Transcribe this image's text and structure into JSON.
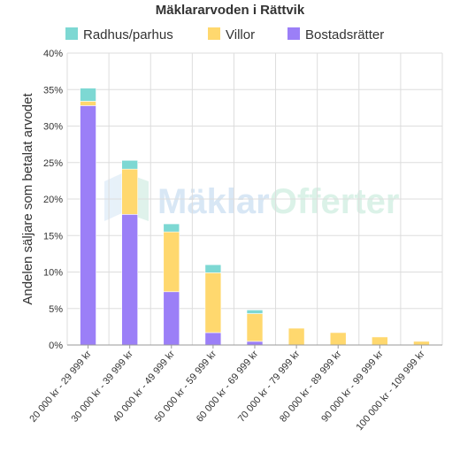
{
  "chart_data": {
    "type": "bar",
    "stacked": true,
    "title": "Mäklararvoden i Rättvik",
    "ylabel": "Andelen säljare som betalat arvodet",
    "xlabel": "",
    "ylim": [
      0,
      40
    ],
    "yticks": [
      "0%",
      "5%",
      "10%",
      "15%",
      "20%",
      "25%",
      "30%",
      "35%",
      "40%"
    ],
    "grid": true,
    "legend_position": "top",
    "categories": [
      "20 000 kr - 29 999 kr",
      "30 000 kr - 39 999 kr",
      "40 000 kr - 49 999 kr",
      "50 000 kr - 59 999 kr",
      "60 000 kr - 69 999 kr",
      "70 000 kr - 79 999 kr",
      "80 000 kr - 89 999 kr",
      "90 000 kr - 99 999 kr",
      "100 000 kr - 109 999 kr"
    ],
    "series": [
      {
        "name": "Bostadsrätter",
        "color": "#9b7ff7",
        "values": [
          32.8,
          17.9,
          7.3,
          1.7,
          0.5,
          0,
          0,
          0,
          0
        ]
      },
      {
        "name": "Villor",
        "color": "#ffd86e",
        "values": [
          0.6,
          6.2,
          8.2,
          8.2,
          3.8,
          2.3,
          1.7,
          1.1,
          0.5
        ]
      },
      {
        "name": "Radhus/parhus",
        "color": "#7dd8d3",
        "values": [
          1.8,
          1.2,
          1.1,
          1.1,
          0.5,
          0,
          0,
          0,
          0
        ]
      }
    ],
    "legend_order": [
      "Radhus/parhus",
      "Villor",
      "Bostadsrätter"
    ]
  },
  "watermark": {
    "text_a": "Mäklar",
    "text_b": "Offerter",
    "color_a": "#b9d4ee",
    "color_b": "#bfe9d6"
  }
}
